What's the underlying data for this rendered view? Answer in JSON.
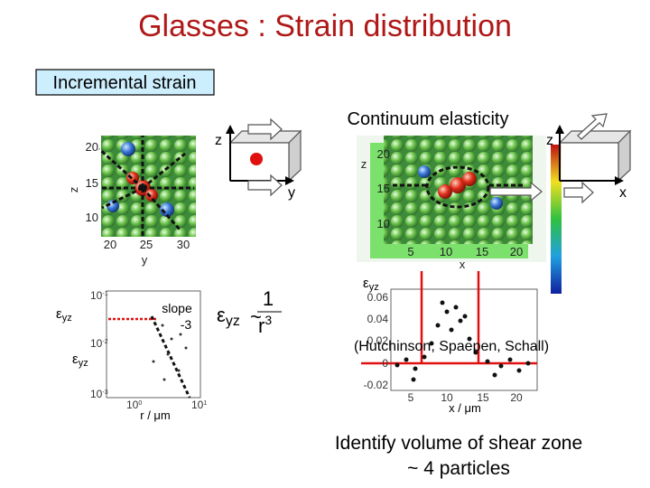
{
  "header": {
    "title": "Glasses : Strain distribution"
  },
  "label_box": "Incremental strain",
  "section_label": "Continuum elasticity",
  "left_image": {
    "axis_z": "z",
    "axis_y": "y",
    "yticks": [
      "20",
      "15",
      "10"
    ],
    "xticks": [
      "20",
      "25",
      "30"
    ]
  },
  "left_diagram": {
    "z": "z",
    "y": "y"
  },
  "right_diagram": {
    "z": "z",
    "x": "x"
  },
  "right_image": {
    "axis_z": "z",
    "axis_x": "x",
    "yticks": [
      "20",
      "15",
      "10"
    ],
    "xticks": [
      "5",
      "10",
      "15",
      "20"
    ]
  },
  "formula": {
    "lhs": "ε",
    "lhs_sub": "yz",
    "sim": "~",
    "numerator": "1",
    "denominator": "r",
    "exponent": "3"
  },
  "log_plot": {
    "y_label": {
      "symbol": "ε",
      "sub": "yz"
    },
    "y_label_2": {
      "symbol": "ε",
      "sub": "yz"
    },
    "slope": "slope",
    "slope_value": "-3",
    "x_label": "r / μm",
    "yticks": [
      {
        "base": "10",
        "exp": "-1"
      },
      {
        "base": "10",
        "exp": "-2"
      },
      {
        "base": "10",
        "exp": "-3"
      }
    ],
    "xticks": [
      {
        "base": "10",
        "exp": "0"
      },
      {
        "base": "10",
        "exp": "1"
      }
    ]
  },
  "profile_plot": {
    "y_label": {
      "symbol": "ε",
      "sub": "yz"
    },
    "yticks": [
      "0.06",
      "0.04",
      "0.02",
      "0",
      "-0.02"
    ],
    "xticks": [
      "5",
      "10",
      "15",
      "20"
    ],
    "x_label": "x / μm",
    "citation": "(Hutchinson, Spaepen, Schall)"
  },
  "conclusion": [
    "Identify volume of shear zone",
    "~ 4 particles"
  ]
}
